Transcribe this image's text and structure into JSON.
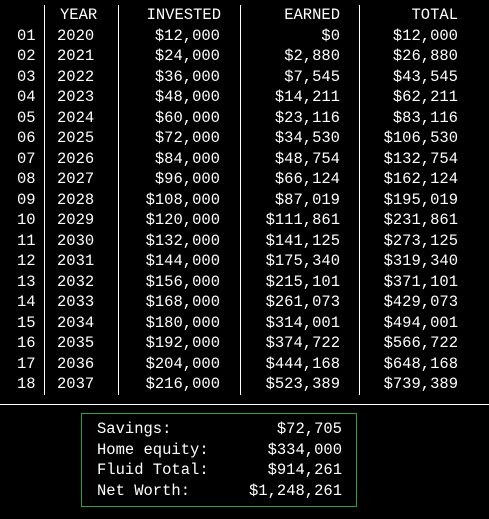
{
  "table": {
    "headers": {
      "index": "",
      "year": "YEAR",
      "invested": "INVESTED",
      "earned": "EARNED",
      "total": "TOTAL"
    },
    "rows": [
      {
        "index": "01",
        "year": "2020",
        "invested": "$12,000",
        "earned": "$0",
        "total": "$12,000"
      },
      {
        "index": "02",
        "year": "2021",
        "invested": "$24,000",
        "earned": "$2,880",
        "total": "$26,880"
      },
      {
        "index": "03",
        "year": "2022",
        "invested": "$36,000",
        "earned": "$7,545",
        "total": "$43,545"
      },
      {
        "index": "04",
        "year": "2023",
        "invested": "$48,000",
        "earned": "$14,211",
        "total": "$62,211"
      },
      {
        "index": "05",
        "year": "2024",
        "invested": "$60,000",
        "earned": "$23,116",
        "total": "$83,116"
      },
      {
        "index": "06",
        "year": "2025",
        "invested": "$72,000",
        "earned": "$34,530",
        "total": "$106,530"
      },
      {
        "index": "07",
        "year": "2026",
        "invested": "$84,000",
        "earned": "$48,754",
        "total": "$132,754"
      },
      {
        "index": "08",
        "year": "2027",
        "invested": "$96,000",
        "earned": "$66,124",
        "total": "$162,124"
      },
      {
        "index": "09",
        "year": "2028",
        "invested": "$108,000",
        "earned": "$87,019",
        "total": "$195,019"
      },
      {
        "index": "10",
        "year": "2029",
        "invested": "$120,000",
        "earned": "$111,861",
        "total": "$231,861"
      },
      {
        "index": "11",
        "year": "2030",
        "invested": "$132,000",
        "earned": "$141,125",
        "total": "$273,125"
      },
      {
        "index": "12",
        "year": "2031",
        "invested": "$144,000",
        "earned": "$175,340",
        "total": "$319,340"
      },
      {
        "index": "13",
        "year": "2032",
        "invested": "$156,000",
        "earned": "$215,101",
        "total": "$371,101"
      },
      {
        "index": "14",
        "year": "2033",
        "invested": "$168,000",
        "earned": "$261,073",
        "total": "$429,073"
      },
      {
        "index": "15",
        "year": "2034",
        "invested": "$180,000",
        "earned": "$314,001",
        "total": "$494,001"
      },
      {
        "index": "16",
        "year": "2035",
        "invested": "$192,000",
        "earned": "$374,722",
        "total": "$566,722"
      },
      {
        "index": "17",
        "year": "2036",
        "invested": "$204,000",
        "earned": "$444,168",
        "total": "$648,168"
      },
      {
        "index": "18",
        "year": "2037",
        "invested": "$216,000",
        "earned": "$523,389",
        "total": "$739,389"
      }
    ]
  },
  "summary": {
    "items": [
      {
        "label": "Savings:",
        "value": "$72,705"
      },
      {
        "label": "Home equity:",
        "value": "$334,000"
      },
      {
        "label": "Fluid Total:",
        "value": "$914,261"
      },
      {
        "label": "Net Worth:",
        "value": "$1,248,261"
      }
    ]
  },
  "colors": {
    "background": "#000000",
    "text": "#ffffff",
    "summary_border": "#2ea043"
  }
}
